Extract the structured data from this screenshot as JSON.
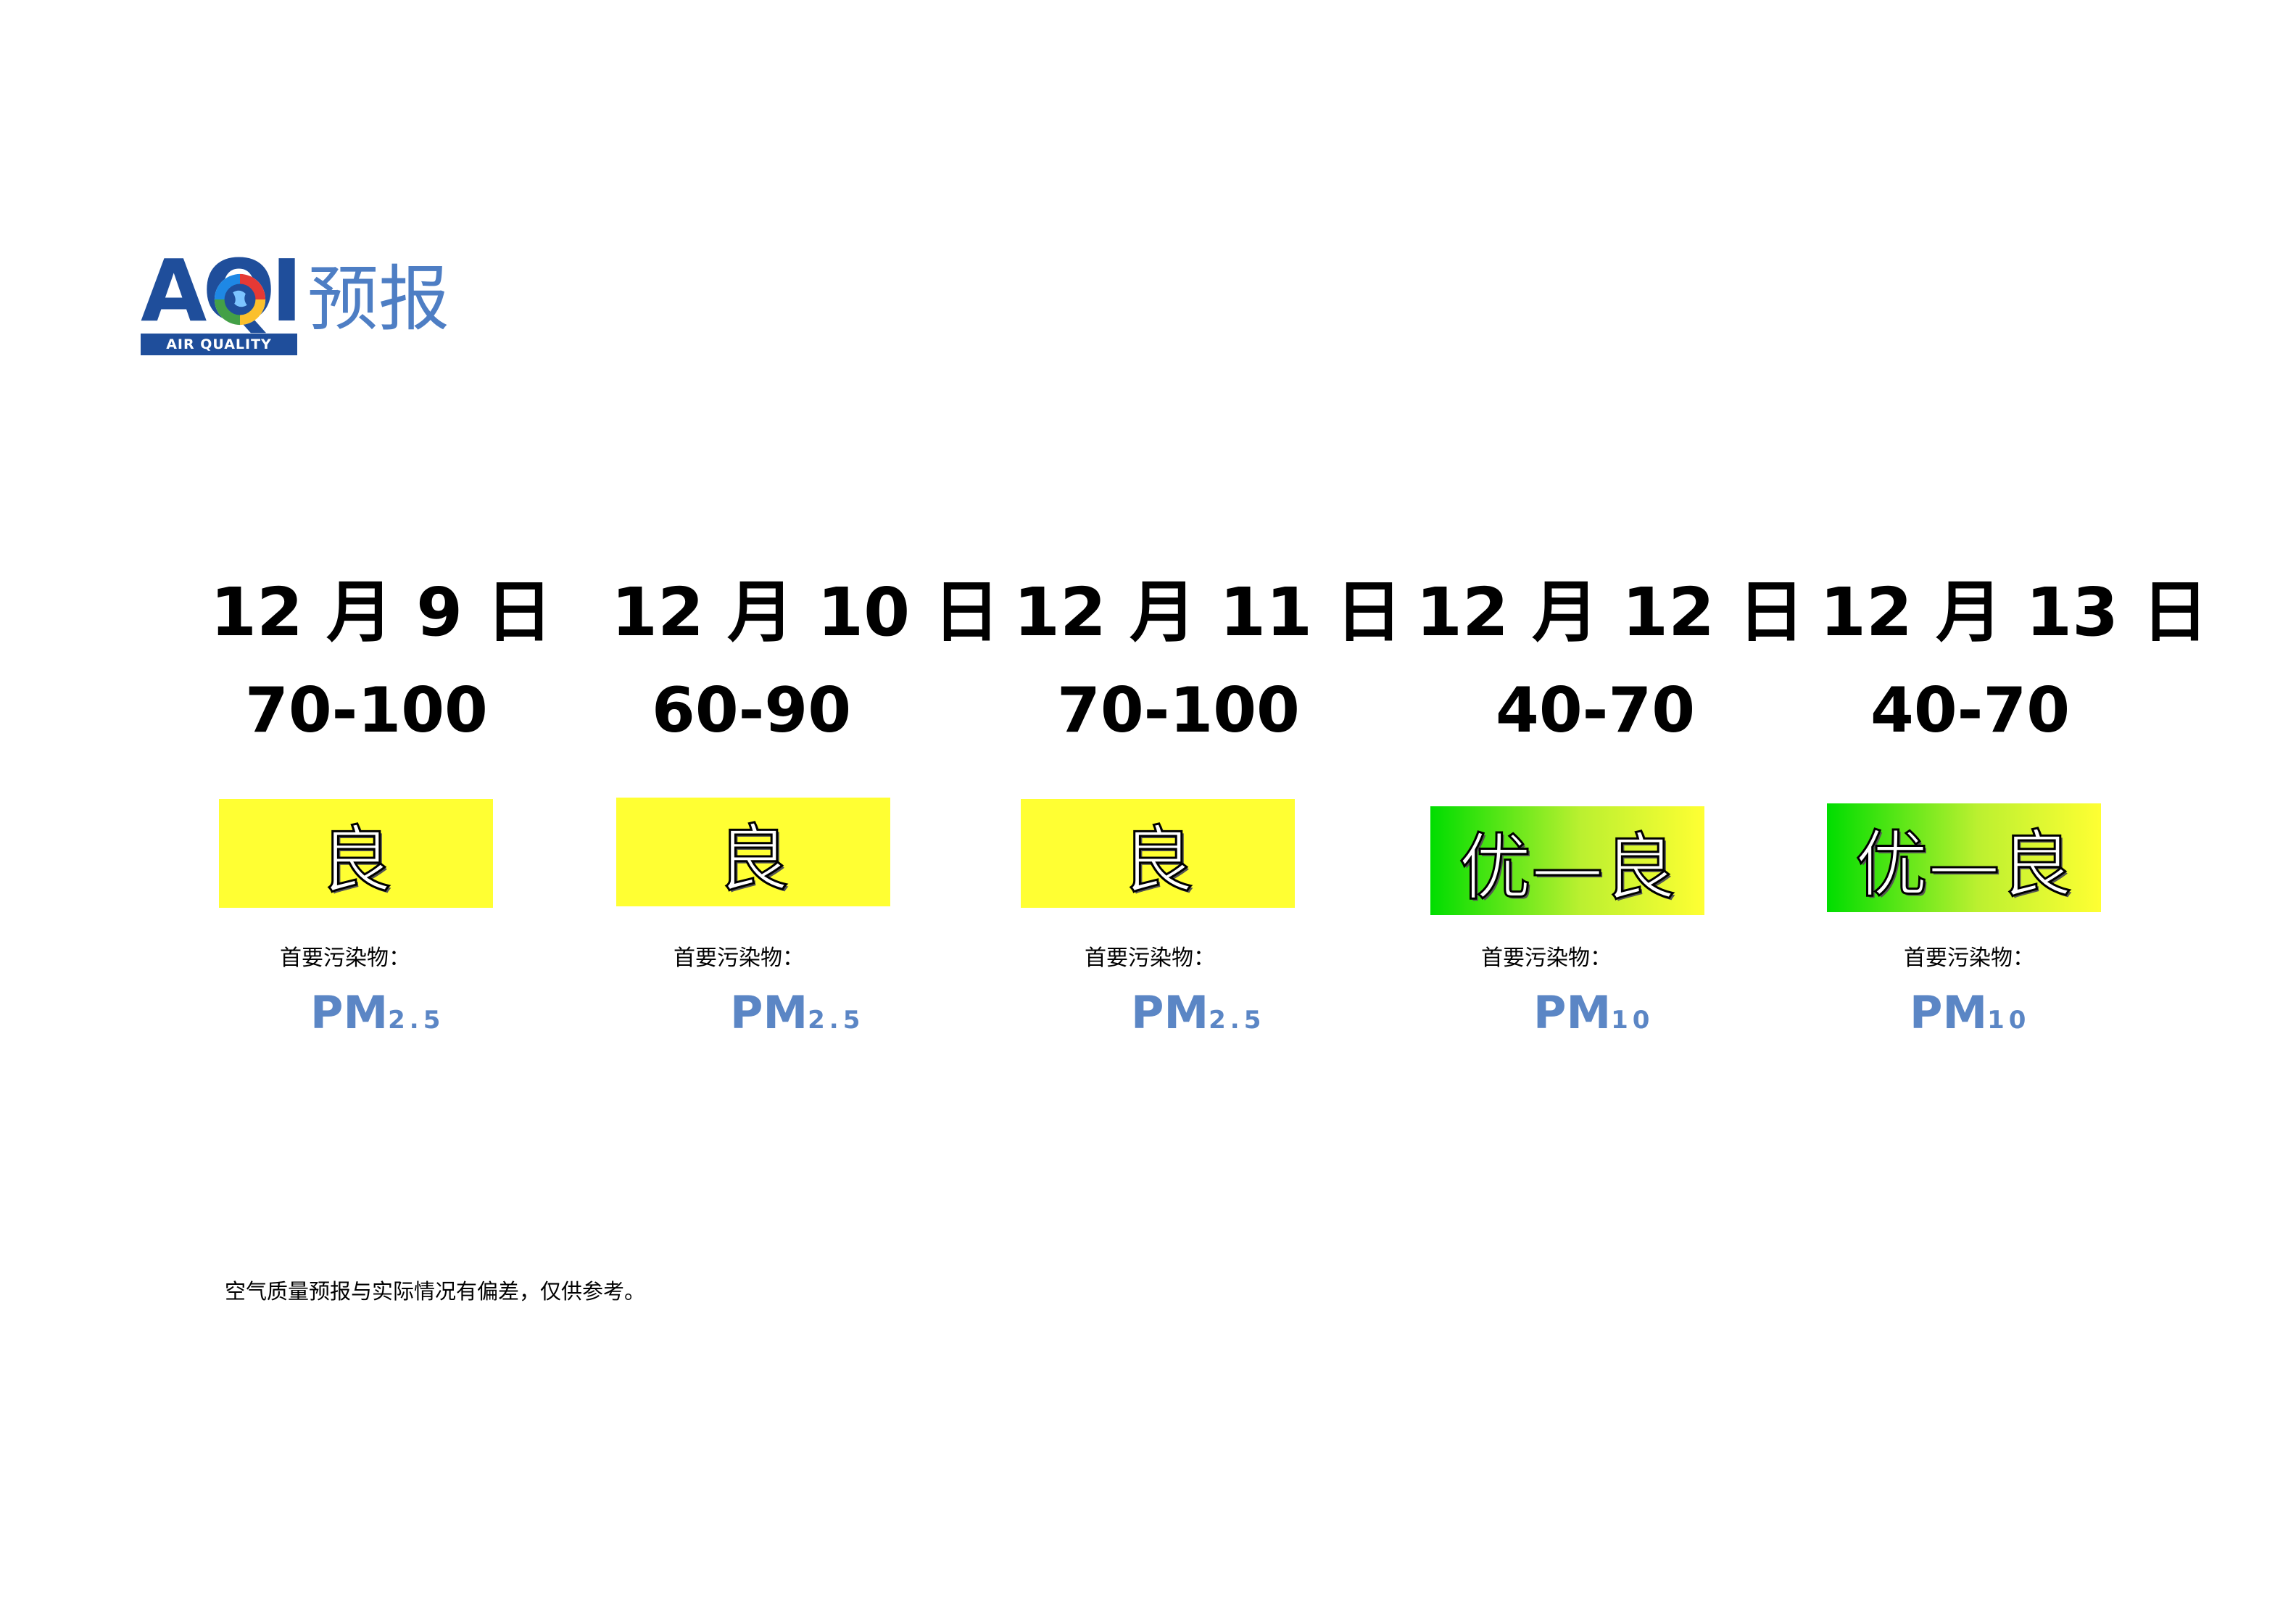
{
  "logo": {
    "letters": "AQI",
    "tagline": "AIR QUALITY INDEX",
    "word": "预报",
    "brand_color": "#1f4e9b",
    "word_color": "#4e7ec4"
  },
  "forecast": [
    {
      "date": "12 月 9 日",
      "range": "70-100",
      "level": "良",
      "level_style": "good",
      "pollutant_label": "首要污染物：",
      "pollutant_main": "PM",
      "pollutant_sub": "2.5"
    },
    {
      "date": "12 月 10 日",
      "range": "60-90",
      "level": "良",
      "level_style": "good",
      "pollutant_label": "首要污染物：",
      "pollutant_main": "PM",
      "pollutant_sub": "2.5"
    },
    {
      "date": "12 月 11 日",
      "range": "70-100",
      "level": "良",
      "level_style": "good",
      "pollutant_label": "首要污染物：",
      "pollutant_main": "PM",
      "pollutant_sub": "2.5"
    },
    {
      "date": "12 月 12 日",
      "range": "40-70",
      "level": "优—良",
      "level_style": "excellent-good",
      "pollutant_label": "首要污染物：",
      "pollutant_main": "PM",
      "pollutant_sub": "10"
    },
    {
      "date": "12 月 13 日",
      "range": "40-70",
      "level": "优—良",
      "level_style": "excellent-good",
      "pollutant_label": "首要污染物：",
      "pollutant_main": "PM",
      "pollutant_sub": "10"
    }
  ],
  "colors": {
    "good": "#ffff33",
    "excellent": "#00dd00",
    "pollutant_text": "#5b86c5"
  },
  "footnote": "空气质量预报与实际情况有偏差，仅供参考。"
}
